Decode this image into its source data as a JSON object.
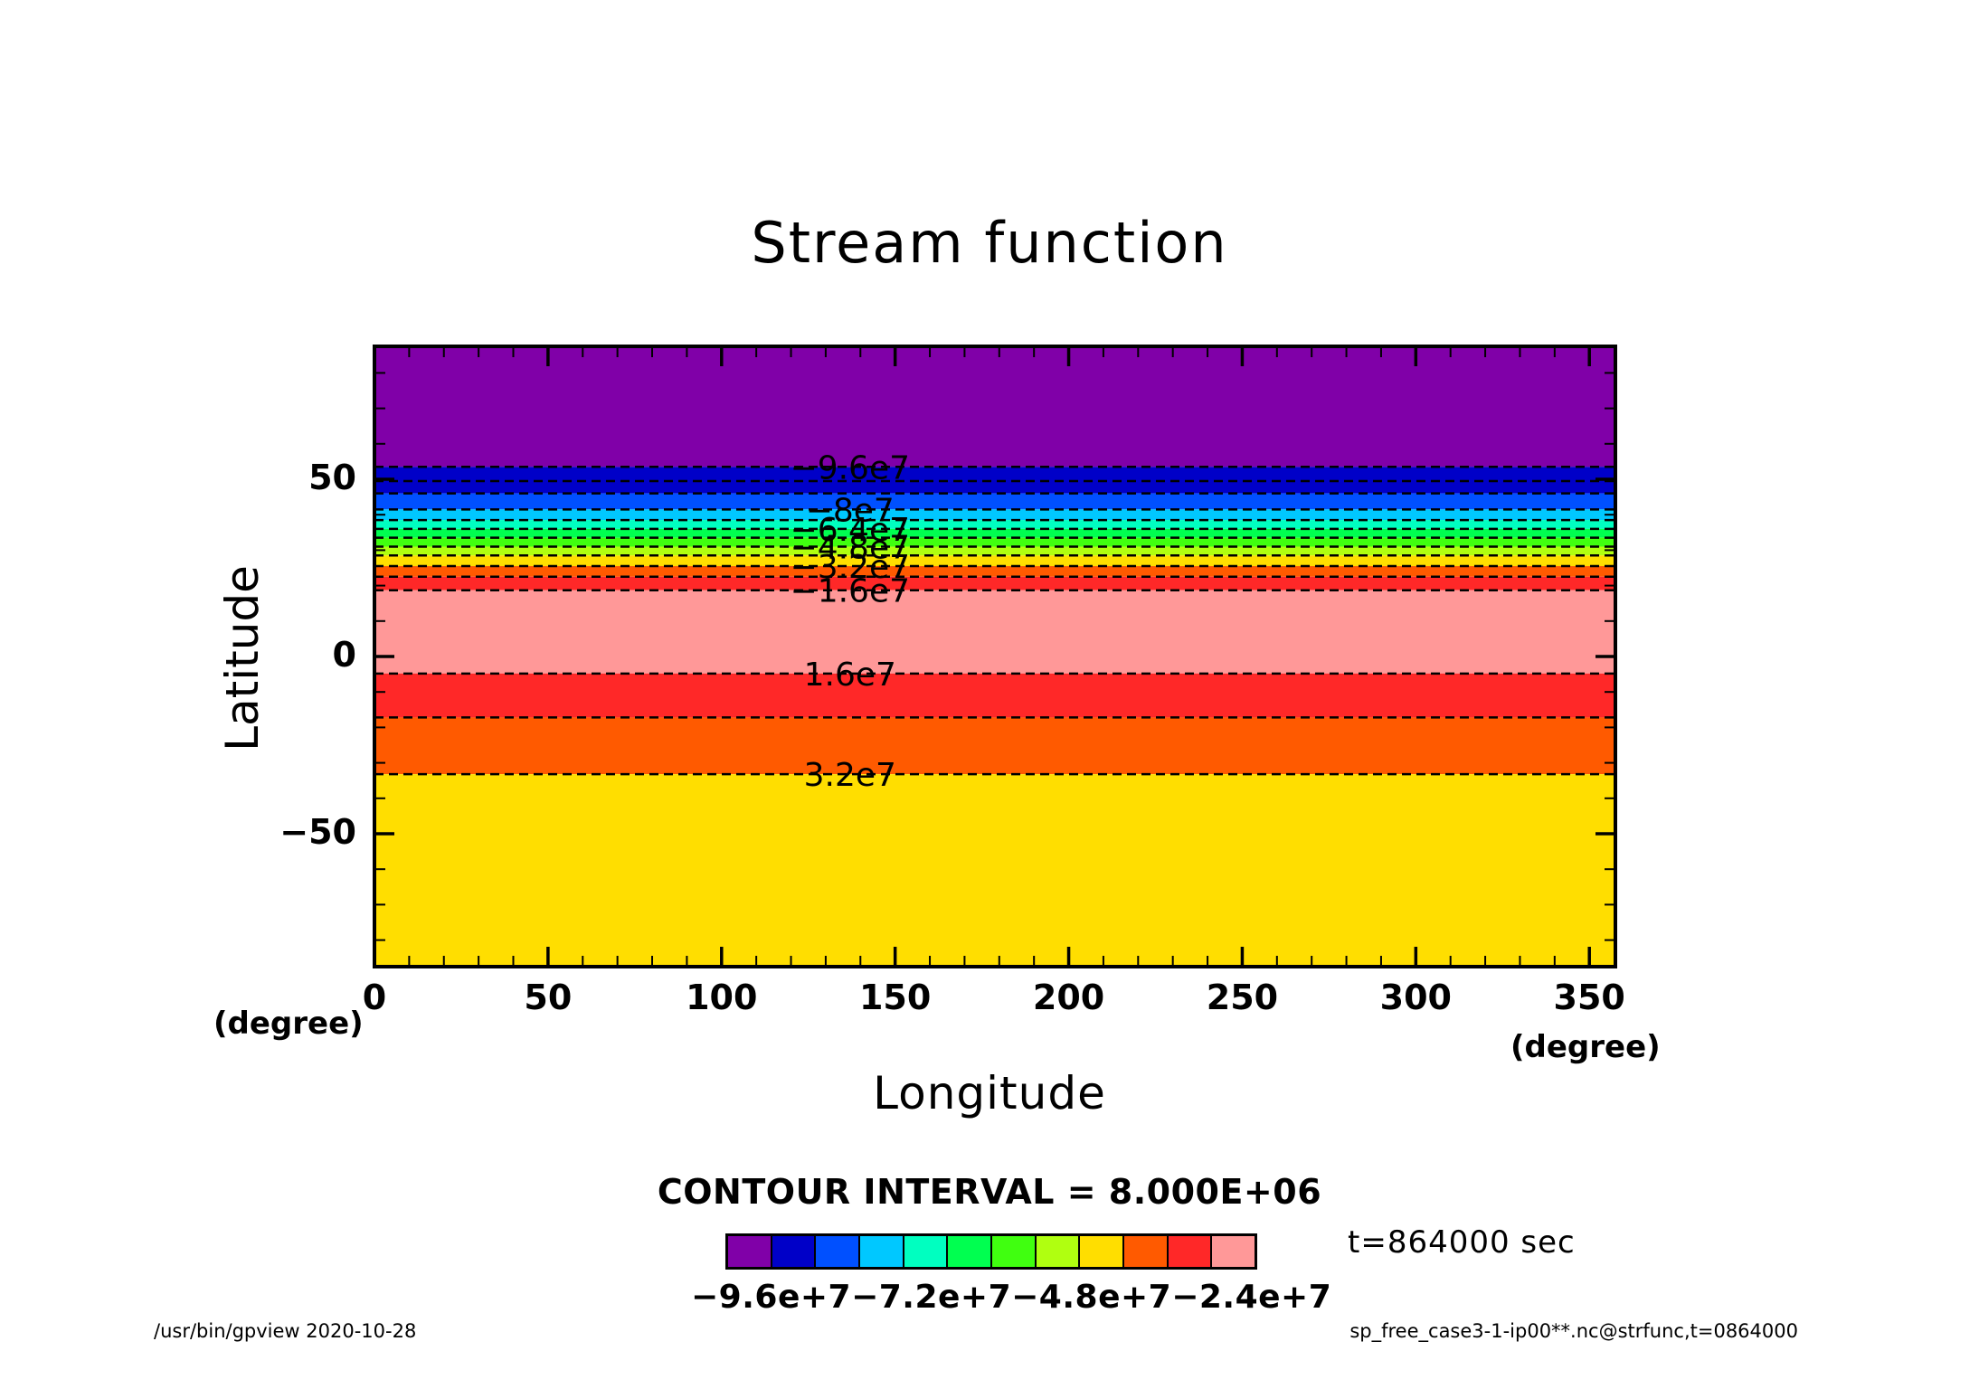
{
  "chart_data": {
    "type": "heatmap",
    "title": "Stream function",
    "xlabel": "Longitude",
    "ylabel": "Latitude",
    "x_unit": "(degree)",
    "y_unit": "(degree)",
    "xlim": [
      0,
      357.5
    ],
    "ylim": [
      -87.5,
      87.5
    ],
    "xticks": [
      0,
      50,
      100,
      150,
      200,
      250,
      300,
      350
    ],
    "yticks": [
      50,
      0,
      -50
    ],
    "grid": false,
    "bands": [
      {
        "lat_from": 53.5,
        "lat_to": 87.5,
        "color": "#8000a8"
      },
      {
        "lat_from": 46.0,
        "lat_to": 53.5,
        "color": "#0000c8"
      },
      {
        "lat_from": 41.5,
        "lat_to": 46.0,
        "color": "#0050ff"
      },
      {
        "lat_from": 38.5,
        "lat_to": 41.5,
        "color": "#00c8ff"
      },
      {
        "lat_from": 36.0,
        "lat_to": 38.5,
        "color": "#00ffc0"
      },
      {
        "lat_from": 33.5,
        "lat_to": 36.0,
        "color": "#00ff50"
      },
      {
        "lat_from": 31.0,
        "lat_to": 33.5,
        "color": "#40ff10"
      },
      {
        "lat_from": 28.5,
        "lat_to": 31.0,
        "color": "#b0ff10"
      },
      {
        "lat_from": 25.5,
        "lat_to": 28.5,
        "color": "#ffde00"
      },
      {
        "lat_from": 22.5,
        "lat_to": 25.5,
        "color": "#ff5a00"
      },
      {
        "lat_from": 18.7,
        "lat_to": 22.5,
        "color": "#ff2828"
      },
      {
        "lat_from": -4.8,
        "lat_to": 18.7,
        "color": "#ff9898"
      },
      {
        "lat_from": -17.2,
        "lat_to": -4.8,
        "color": "#ff2828"
      },
      {
        "lat_from": -33.2,
        "lat_to": -17.2,
        "color": "#ff5a00"
      },
      {
        "lat_from": -87.5,
        "lat_to": -33.2,
        "color": "#ffde00"
      }
    ],
    "contour_lines": [
      53.5,
      49.5,
      46.0,
      41.5,
      38.5,
      36.0,
      33.5,
      31.0,
      28.5,
      25.5,
      22.5,
      18.7,
      -4.8,
      -17.2,
      -33.2
    ],
    "contour_labels": [
      {
        "text": "-9.6e7",
        "lat": 53.5
      },
      {
        "text": "-8e7",
        "lat": 41.5
      },
      {
        "text": "-6.4e7",
        "lat": 36.0
      },
      {
        "text": "-4.8e7",
        "lat": 31.0
      },
      {
        "text": "-3.2e7",
        "lat": 25.5
      },
      {
        "text": "-1.6e7",
        "lat": 18.7
      },
      {
        "text": "1.6e7",
        "lat": -4.8
      },
      {
        "text": "3.2e7",
        "lat": -33.2
      }
    ],
    "label_longitude": 137,
    "colorbar_colors": [
      "#8000a8",
      "#0000c8",
      "#0050ff",
      "#00c8ff",
      "#00ffc0",
      "#00ff50",
      "#40ff10",
      "#b0ff10",
      "#ffde00",
      "#ff5a00",
      "#ff2828",
      "#ff9898"
    ]
  },
  "contour_interval": "CONTOUR INTERVAL = 8.000E+06",
  "colorbar_labels": "−9.6e+7−7.2e+7−4.8e+7−2.4e+7",
  "time_label": "t=864000 sec",
  "footer_left": "/usr/bin/gpview   2020-10-28",
  "footer_right": "sp_free_case3-1-ip00**.nc@strfunc,t=0864000"
}
